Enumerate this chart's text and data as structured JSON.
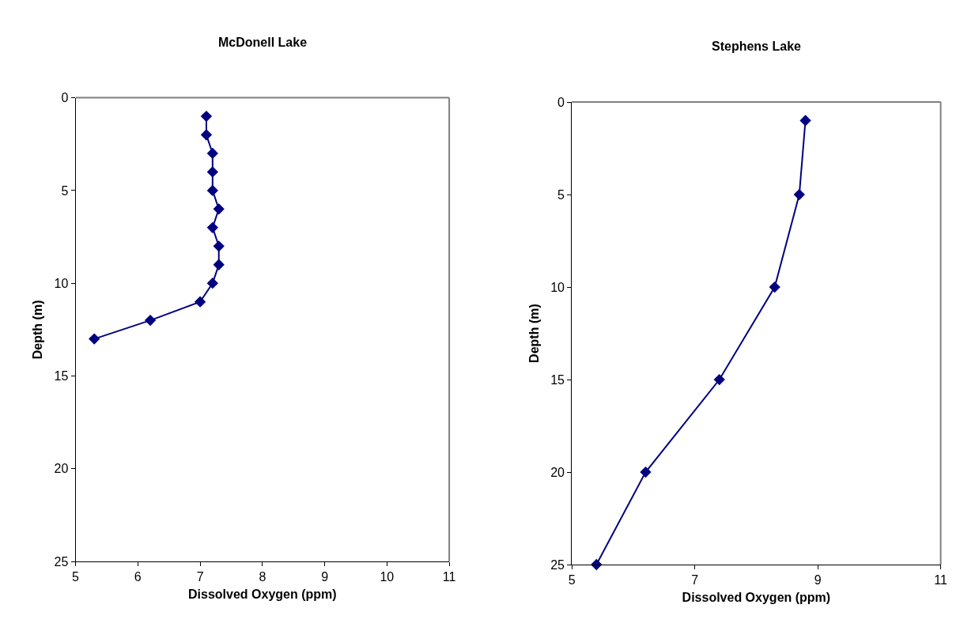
{
  "chart_data": [
    {
      "type": "line",
      "title": "McDonell Lake",
      "xlabel": "Dissolved Oxygen (ppm)",
      "ylabel": "Depth (m)",
      "x": [
        7.1,
        7.1,
        7.2,
        7.2,
        7.2,
        7.3,
        7.2,
        7.3,
        7.3,
        7.2,
        7.0,
        6.2,
        5.3
      ],
      "series": [
        {
          "color": "#000080",
          "values": [
            1,
            2,
            3,
            4,
            5,
            6,
            7,
            8,
            9,
            10,
            11,
            12,
            13
          ]
        }
      ],
      "xlim": [
        5,
        11
      ],
      "xticks": [
        5,
        6,
        7,
        8,
        9,
        10,
        11
      ],
      "ylim": [
        25,
        0
      ],
      "yticks": [
        0,
        5,
        10,
        15,
        20,
        25
      ],
      "marker": "diamond",
      "line_style": "solid",
      "grid": false
    },
    {
      "type": "line",
      "title": "Stephens Lake",
      "xlabel": "Dissolved Oxygen (ppm)",
      "ylabel": "Depth (m)",
      "x": [
        8.8,
        8.7,
        8.3,
        7.4,
        6.2,
        5.4
      ],
      "series": [
        {
          "color": "#000080",
          "values": [
            1,
            5,
            10,
            15,
            20,
            25
          ]
        }
      ],
      "xlim": [
        5,
        11
      ],
      "xticks": [
        5,
        7,
        9,
        11
      ],
      "ylim": [
        25,
        0
      ],
      "yticks": [
        0,
        5,
        10,
        15,
        20,
        25
      ],
      "marker": "diamond",
      "line_style": "solid",
      "grid": false
    }
  ]
}
